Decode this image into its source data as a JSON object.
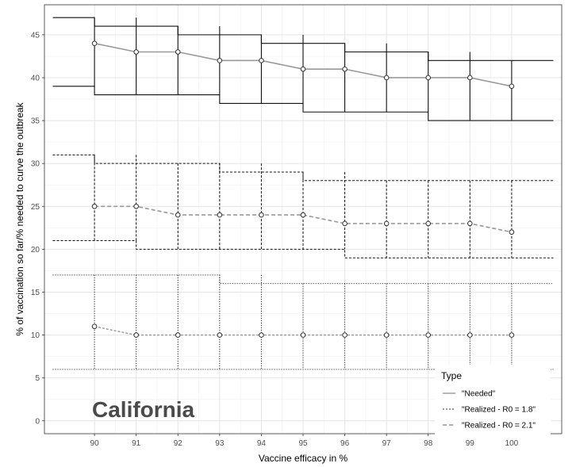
{
  "chart_data": {
    "type": "line",
    "annotation": "California",
    "xlabel": "Vaccine efficacy in %",
    "ylabel": "% of vaccination so far/% needed to curve the outbreak",
    "xlim": [
      88.8,
      101.2
    ],
    "ylim": [
      -1.5,
      48.5
    ],
    "x_ticks": [
      90,
      91,
      92,
      93,
      94,
      95,
      96,
      97,
      98,
      99,
      100
    ],
    "y_ticks": [
      0,
      5,
      10,
      15,
      20,
      25,
      30,
      35,
      40,
      45
    ],
    "grid": true,
    "legend": {
      "title": "Type",
      "placement": "bottom-right",
      "entries": [
        "\"Needed\"",
        "\"Realized - R0 = 1.8\"",
        "\"Realized - R0 = 2.1\""
      ]
    },
    "series": [
      {
        "name": "\"Needed\"",
        "color": "#999999",
        "line_style": "solid",
        "x": [
          90,
          91,
          92,
          93,
          94,
          95,
          96,
          97,
          98,
          99,
          100
        ],
        "values": [
          44,
          43,
          43,
          42,
          42,
          41,
          41,
          40,
          40,
          40,
          39
        ],
        "lower": [
          39,
          38,
          38,
          38,
          37,
          37,
          36,
          36,
          36,
          35,
          35
        ],
        "upper": [
          47,
          46,
          46,
          45,
          45,
          44,
          44,
          43,
          43,
          42,
          42
        ]
      },
      {
        "name": "\"Realized - R0 = 2.1\"",
        "color": "#999999",
        "line_style": "dashed",
        "x": [
          90,
          91,
          92,
          93,
          94,
          95,
          96,
          97,
          98,
          99,
          100
        ],
        "values": [
          25,
          25,
          24,
          24,
          24,
          24,
          23,
          23,
          23,
          23,
          22
        ],
        "lower": [
          21,
          21,
          20,
          20,
          20,
          20,
          20,
          19,
          19,
          19,
          19
        ],
        "upper": [
          31,
          30,
          30,
          30,
          29,
          29,
          28,
          28,
          28,
          28,
          28
        ]
      },
      {
        "name": "\"Realized - R0 = 1.8\"",
        "color": "#999999",
        "line_style": "dotted",
        "x": [
          90,
          91,
          92,
          93,
          94,
          95,
          96,
          97,
          98,
          99,
          100
        ],
        "values": [
          11,
          10,
          10,
          10,
          10,
          10,
          10,
          10,
          10,
          10,
          10
        ],
        "lower": [
          6,
          6,
          6,
          6,
          6,
          6,
          6,
          6,
          6,
          6,
          6
        ],
        "upper": [
          17,
          17,
          17,
          17,
          16,
          16,
          16,
          16,
          16,
          16,
          16
        ]
      }
    ]
  }
}
